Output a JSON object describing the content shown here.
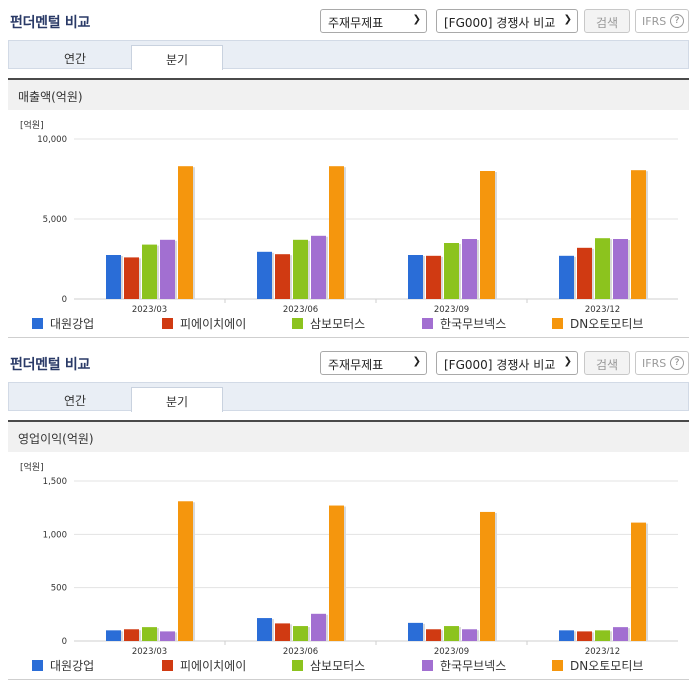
{
  "colors": {
    "대원강업": "#2a6dd7",
    "피에이치에이": "#d03a12",
    "삼보모터스": "#8cc31e",
    "한국무브넥스": "#a26fd1",
    "DN오토모티브": "#f5960d"
  },
  "panels": [
    {
      "title": "펀더멘털 비교",
      "select_statement": "주재무제표",
      "select_compare": "[FG000] 경쟁사 비교",
      "search_label": "검색",
      "ifrs_label": "IFRS",
      "help_glyph": "?",
      "tabs": [
        {
          "label": "연간",
          "active": false
        },
        {
          "label": "분기",
          "active": true
        }
      ],
      "metric_label": "매출액(억원)",
      "chart_data": {
        "type": "bar",
        "unit_label": "[억원]",
        "categories": [
          "2023/03",
          "2023/06",
          "2023/09",
          "2023/12"
        ],
        "ylim": [
          0,
          10000
        ],
        "yticks": [
          0,
          5000,
          10000
        ],
        "ytick_labels": [
          "0",
          "5,000",
          "10,000"
        ],
        "series": [
          {
            "name": "대원강업",
            "values": [
              2750,
              2950,
              2750,
              2700
            ]
          },
          {
            "name": "피에이치에이",
            "values": [
              2600,
              2800,
              2700,
              3200
            ]
          },
          {
            "name": "삼보모터스",
            "values": [
              3400,
              3700,
              3500,
              3800
            ]
          },
          {
            "name": "한국무브넥스",
            "values": [
              3700,
              3950,
              3750,
              3750
            ]
          },
          {
            "name": "DN오토모티브",
            "values": [
              8300,
              8300,
              8000,
              8050
            ]
          }
        ]
      }
    },
    {
      "title": "펀더멘털 비교",
      "select_statement": "주재무제표",
      "select_compare": "[FG000] 경쟁사 비교",
      "search_label": "검색",
      "ifrs_label": "IFRS",
      "help_glyph": "?",
      "tabs": [
        {
          "label": "연간",
          "active": false
        },
        {
          "label": "분기",
          "active": true
        }
      ],
      "metric_label": "영업이익(억원)",
      "chart_data": {
        "type": "bar",
        "unit_label": "[억원]",
        "categories": [
          "2023/03",
          "2023/06",
          "2023/09",
          "2023/12"
        ],
        "ylim": [
          0,
          1500
        ],
        "yticks": [
          0,
          500,
          1000,
          1500
        ],
        "ytick_labels": [
          "0",
          "500",
          "1,000",
          "1,500"
        ],
        "series": [
          {
            "name": "대원강업",
            "values": [
              100,
              215,
              170,
              100
            ]
          },
          {
            "name": "피에이치에이",
            "values": [
              110,
              165,
              110,
              90
            ]
          },
          {
            "name": "삼보모터스",
            "values": [
              130,
              140,
              140,
              100
            ]
          },
          {
            "name": "한국무브넥스",
            "values": [
              90,
              255,
              110,
              130
            ]
          },
          {
            "name": "DN오토모티브",
            "values": [
              1310,
              1270,
              1210,
              1110
            ]
          }
        ]
      }
    }
  ]
}
